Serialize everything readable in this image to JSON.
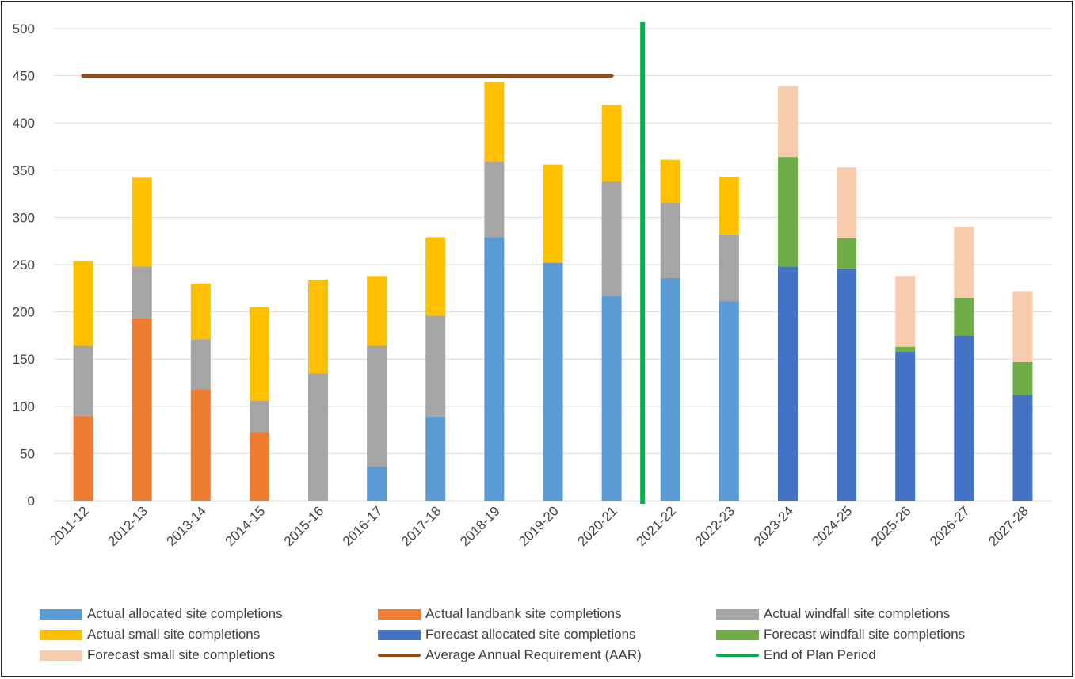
{
  "chart_data": {
    "type": "bar",
    "stacked": true,
    "categories": [
      "2011-12",
      "2012-13",
      "2013-14",
      "2014-15",
      "2015-16",
      "2016-17",
      "2017-18",
      "2018-19",
      "2019-20",
      "2020-21",
      "2021-22",
      "2022-23",
      "2023-24",
      "2024-25",
      "2025-26",
      "2026-27",
      "2027-28"
    ],
    "ylim": [
      0,
      500
    ],
    "yticks": [
      "0",
      "50",
      "100",
      "150",
      "200",
      "250",
      "300",
      "350",
      "400",
      "450",
      "500"
    ],
    "grid": true,
    "legend_position": "bottom",
    "series": [
      {
        "name": "Actual allocated site completions",
        "color": "#5B9BD5",
        "values": [
          0,
          0,
          0,
          0,
          0,
          36,
          89,
          279,
          252,
          217,
          236,
          211,
          0,
          0,
          0,
          0,
          0
        ]
      },
      {
        "name": "Actual landbank site completions",
        "color": "#ED7D31",
        "values": [
          90,
          193,
          118,
          73,
          0,
          0,
          0,
          0,
          0,
          0,
          0,
          0,
          0,
          0,
          0,
          0,
          0
        ]
      },
      {
        "name": "Actual windfall site completions",
        "color": "#A5A5A5",
        "values": [
          74,
          55,
          53,
          33,
          135,
          128,
          107,
          80,
          0,
          121,
          80,
          71,
          0,
          0,
          0,
          0,
          0
        ]
      },
      {
        "name": "Actual small site completions",
        "color": "#FFC000",
        "values": [
          90,
          94,
          59,
          99,
          99,
          74,
          83,
          84,
          104,
          81,
          45,
          61,
          0,
          0,
          0,
          0,
          0
        ]
      },
      {
        "name": "Forecast allocated site completions",
        "color": "#4472C4",
        "values": [
          0,
          0,
          0,
          0,
          0,
          0,
          0,
          0,
          0,
          0,
          0,
          0,
          248,
          246,
          158,
          175,
          112
        ]
      },
      {
        "name": "Forecast windfall site completions",
        "color": "#70AD47",
        "values": [
          0,
          0,
          0,
          0,
          0,
          0,
          0,
          0,
          0,
          0,
          0,
          0,
          116,
          32,
          5,
          40,
          35
        ]
      },
      {
        "name": "Forecast small site completions",
        "color": "#F8CBAD",
        "values": [
          0,
          0,
          0,
          0,
          0,
          0,
          0,
          0,
          0,
          0,
          0,
          0,
          75,
          75,
          75,
          75,
          75
        ]
      }
    ],
    "lines": [
      {
        "name": "Average Annual Requirement (AAR)",
        "color": "#9E480E",
        "y": 450,
        "x_from": "2011-12",
        "x_to": "2020-21"
      },
      {
        "name": "End of Plan Period",
        "color": "#00B050",
        "orientation": "vertical",
        "between": [
          "2020-21",
          "2021-22"
        ]
      }
    ]
  },
  "legend": {
    "row1": [
      "Actual allocated site completions",
      "Actual landbank site completions",
      "Actual windfall site completions"
    ],
    "row2": [
      "Actual small site completions",
      "Forecast allocated site completions",
      "Forecast windfall site completions"
    ],
    "row3": [
      "Forecast small site completions",
      "Average Annual Requirement (AAR)",
      "End of Plan Period"
    ]
  },
  "colors": {
    "allocated": "#5B9BD5",
    "landbank": "#ED7D31",
    "windfall": "#A5A5A5",
    "small": "#FFC000",
    "forecast_allocated": "#4472C4",
    "forecast_windfall": "#70AD47",
    "forecast_small": "#F8CBAD",
    "aar": "#9E480E",
    "end_plan": "#00B050"
  }
}
